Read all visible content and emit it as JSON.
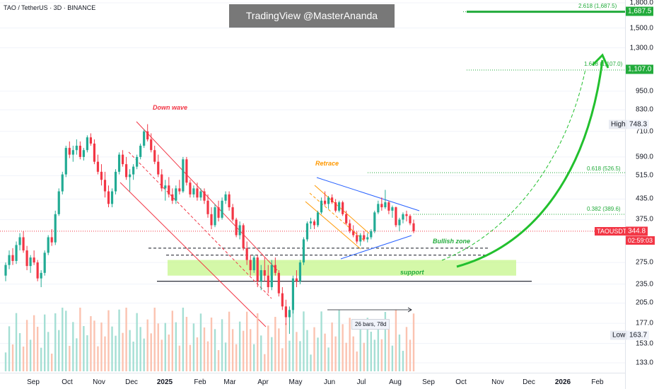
{
  "header": {
    "symbol": "TAO / TetherUS · 3D · BINANCE",
    "watermark": "TradingView @MasterAnanda"
  },
  "price_axis": {
    "ticks": [
      "1,800.0",
      "1,500.0",
      "1,300.0",
      "950.0",
      "830.0",
      "710.0",
      "590.0",
      "515.0",
      "435.0",
      "375.0",
      "275.0",
      "235.0",
      "205.0",
      "177.0",
      "153.0",
      "133.0"
    ],
    "tags": {
      "fib_2618": "1,687.5",
      "fib_1618": "1,107.0",
      "high_label": "High",
      "high_value": "748.3",
      "symbol": "TAOUSDT",
      "last_price": "344.8",
      "countdown": "02:59:03",
      "low_label": "Low",
      "low_value": "163.7"
    }
  },
  "time_axis": {
    "labels": [
      "Sep",
      "Oct",
      "Nov",
      "Dec",
      "2025",
      "Feb",
      "Mar",
      "Apr",
      "May",
      "Jun",
      "Jul",
      "Aug",
      "Sep",
      "Oct",
      "Nov",
      "Dec",
      "2026",
      "Feb"
    ]
  },
  "fib_labels": {
    "f2618": "2.618 (1,687.5)",
    "f1618": "1.618 (1,107.0)",
    "f0618": "0.618 (526.5)",
    "f0382": "0.382 (389.6)"
  },
  "annotations": {
    "down_wave": "Down wave",
    "retrace": "Retrace",
    "bullish_zone": "Bullish zone",
    "support": "support",
    "measure": "26 bars, 78d"
  },
  "colors": {
    "up": "#22ab94",
    "down": "#f23645",
    "fib": "#22ab3b",
    "arrow": "#22c02e",
    "support_zone": "#c6f58b",
    "down_channel": "#f23645",
    "retrace_channel": "#ff9800",
    "triangle": "#2962ff",
    "volume_up": "#a5dfd4",
    "volume_down": "#fbc3b1"
  },
  "chart_data": {
    "type": "candlestick",
    "title": "TAO / TetherUS · 3D · BINANCE",
    "y_scale": "log",
    "ylim": [
      125,
      1800
    ],
    "x_range": [
      "Aug 2024",
      "Mar 2026"
    ],
    "ohlc": [
      {
        "o": 250,
        "h": 275,
        "l": 240,
        "c": 270
      },
      {
        "o": 270,
        "h": 300,
        "l": 262,
        "c": 290
      },
      {
        "o": 290,
        "h": 305,
        "l": 270,
        "c": 278
      },
      {
        "o": 278,
        "h": 320,
        "l": 272,
        "c": 312
      },
      {
        "o": 312,
        "h": 340,
        "l": 300,
        "c": 330
      },
      {
        "o": 330,
        "h": 345,
        "l": 295,
        "c": 300
      },
      {
        "o": 300,
        "h": 310,
        "l": 260,
        "c": 268
      },
      {
        "o": 268,
        "h": 290,
        "l": 255,
        "c": 285
      },
      {
        "o": 285,
        "h": 300,
        "l": 270,
        "c": 275
      },
      {
        "o": 275,
        "h": 280,
        "l": 240,
        "c": 245
      },
      {
        "o": 245,
        "h": 260,
        "l": 230,
        "c": 255
      },
      {
        "o": 255,
        "h": 300,
        "l": 250,
        "c": 295
      },
      {
        "o": 295,
        "h": 335,
        "l": 290,
        "c": 330
      },
      {
        "o": 330,
        "h": 350,
        "l": 310,
        "c": 318
      },
      {
        "o": 318,
        "h": 400,
        "l": 312,
        "c": 390
      },
      {
        "o": 390,
        "h": 470,
        "l": 385,
        "c": 460
      },
      {
        "o": 460,
        "h": 530,
        "l": 450,
        "c": 520
      },
      {
        "o": 520,
        "h": 640,
        "l": 510,
        "c": 630
      },
      {
        "o": 630,
        "h": 660,
        "l": 585,
        "c": 600
      },
      {
        "o": 600,
        "h": 640,
        "l": 570,
        "c": 620
      },
      {
        "o": 620,
        "h": 670,
        "l": 600,
        "c": 640
      },
      {
        "o": 640,
        "h": 660,
        "l": 580,
        "c": 590
      },
      {
        "o": 590,
        "h": 630,
        "l": 575,
        "c": 620
      },
      {
        "o": 620,
        "h": 690,
        "l": 610,
        "c": 680
      },
      {
        "o": 680,
        "h": 700,
        "l": 640,
        "c": 650
      },
      {
        "o": 650,
        "h": 670,
        "l": 560,
        "c": 570
      },
      {
        "o": 570,
        "h": 600,
        "l": 520,
        "c": 530
      },
      {
        "o": 530,
        "h": 560,
        "l": 480,
        "c": 500
      },
      {
        "o": 500,
        "h": 530,
        "l": 440,
        "c": 460
      },
      {
        "o": 460,
        "h": 480,
        "l": 410,
        "c": 420
      },
      {
        "o": 420,
        "h": 470,
        "l": 410,
        "c": 460
      },
      {
        "o": 460,
        "h": 540,
        "l": 450,
        "c": 530
      },
      {
        "o": 530,
        "h": 610,
        "l": 520,
        "c": 600
      },
      {
        "o": 600,
        "h": 620,
        "l": 550,
        "c": 560
      },
      {
        "o": 560,
        "h": 590,
        "l": 500,
        "c": 510
      },
      {
        "o": 510,
        "h": 540,
        "l": 460,
        "c": 520
      },
      {
        "o": 520,
        "h": 560,
        "l": 500,
        "c": 550
      },
      {
        "o": 550,
        "h": 600,
        "l": 540,
        "c": 590
      },
      {
        "o": 590,
        "h": 650,
        "l": 580,
        "c": 640
      },
      {
        "o": 640,
        "h": 720,
        "l": 630,
        "c": 710
      },
      {
        "o": 710,
        "h": 748,
        "l": 660,
        "c": 670
      },
      {
        "o": 670,
        "h": 700,
        "l": 610,
        "c": 620
      },
      {
        "o": 620,
        "h": 640,
        "l": 560,
        "c": 570
      },
      {
        "o": 570,
        "h": 600,
        "l": 510,
        "c": 520
      },
      {
        "o": 520,
        "h": 540,
        "l": 460,
        "c": 470
      },
      {
        "o": 470,
        "h": 500,
        "l": 430,
        "c": 480
      },
      {
        "o": 480,
        "h": 510,
        "l": 440,
        "c": 450
      },
      {
        "o": 450,
        "h": 470,
        "l": 420,
        "c": 430
      },
      {
        "o": 430,
        "h": 480,
        "l": 420,
        "c": 470
      },
      {
        "o": 470,
        "h": 500,
        "l": 450,
        "c": 460
      },
      {
        "o": 460,
        "h": 590,
        "l": 455,
        "c": 580
      },
      {
        "o": 580,
        "h": 590,
        "l": 480,
        "c": 490
      },
      {
        "o": 490,
        "h": 500,
        "l": 440,
        "c": 450
      },
      {
        "o": 450,
        "h": 480,
        "l": 440,
        "c": 470
      },
      {
        "o": 470,
        "h": 490,
        "l": 430,
        "c": 440
      },
      {
        "o": 440,
        "h": 470,
        "l": 430,
        "c": 460
      },
      {
        "o": 460,
        "h": 470,
        "l": 420,
        "c": 430
      },
      {
        "o": 430,
        "h": 450,
        "l": 380,
        "c": 390
      },
      {
        "o": 390,
        "h": 410,
        "l": 350,
        "c": 360
      },
      {
        "o": 360,
        "h": 420,
        "l": 355,
        "c": 410
      },
      {
        "o": 410,
        "h": 430,
        "l": 370,
        "c": 380
      },
      {
        "o": 380,
        "h": 440,
        "l": 375,
        "c": 430
      },
      {
        "o": 430,
        "h": 460,
        "l": 420,
        "c": 450
      },
      {
        "o": 450,
        "h": 460,
        "l": 400,
        "c": 410
      },
      {
        "o": 410,
        "h": 420,
        "l": 370,
        "c": 375
      },
      {
        "o": 375,
        "h": 380,
        "l": 330,
        "c": 335
      },
      {
        "o": 335,
        "h": 370,
        "l": 325,
        "c": 360
      },
      {
        "o": 360,
        "h": 365,
        "l": 300,
        "c": 305
      },
      {
        "o": 305,
        "h": 320,
        "l": 270,
        "c": 280
      },
      {
        "o": 280,
        "h": 290,
        "l": 250,
        "c": 260
      },
      {
        "o": 260,
        "h": 290,
        "l": 255,
        "c": 285
      },
      {
        "o": 285,
        "h": 290,
        "l": 230,
        "c": 240
      },
      {
        "o": 240,
        "h": 270,
        "l": 225,
        "c": 260
      },
      {
        "o": 260,
        "h": 285,
        "l": 240,
        "c": 250
      },
      {
        "o": 250,
        "h": 270,
        "l": 220,
        "c": 230
      },
      {
        "o": 230,
        "h": 280,
        "l": 225,
        "c": 270
      },
      {
        "o": 270,
        "h": 285,
        "l": 250,
        "c": 255
      },
      {
        "o": 255,
        "h": 260,
        "l": 215,
        "c": 220
      },
      {
        "o": 220,
        "h": 230,
        "l": 195,
        "c": 200
      },
      {
        "o": 200,
        "h": 210,
        "l": 175,
        "c": 185
      },
      {
        "o": 185,
        "h": 200,
        "l": 164,
        "c": 195
      },
      {
        "o": 195,
        "h": 250,
        "l": 190,
        "c": 245
      },
      {
        "o": 245,
        "h": 260,
        "l": 230,
        "c": 240
      },
      {
        "o": 240,
        "h": 280,
        "l": 235,
        "c": 275
      },
      {
        "o": 275,
        "h": 330,
        "l": 270,
        "c": 325
      },
      {
        "o": 325,
        "h": 370,
        "l": 320,
        "c": 365
      },
      {
        "o": 365,
        "h": 380,
        "l": 350,
        "c": 370
      },
      {
        "o": 370,
        "h": 375,
        "l": 350,
        "c": 360
      },
      {
        "o": 360,
        "h": 400,
        "l": 355,
        "c": 395
      },
      {
        "o": 395,
        "h": 440,
        "l": 390,
        "c": 430
      },
      {
        "o": 430,
        "h": 460,
        "l": 415,
        "c": 420
      },
      {
        "o": 420,
        "h": 445,
        "l": 405,
        "c": 440
      },
      {
        "o": 440,
        "h": 450,
        "l": 420,
        "c": 425
      },
      {
        "o": 425,
        "h": 435,
        "l": 395,
        "c": 400
      },
      {
        "o": 400,
        "h": 430,
        "l": 395,
        "c": 425
      },
      {
        "o": 425,
        "h": 430,
        "l": 385,
        "c": 390
      },
      {
        "o": 390,
        "h": 400,
        "l": 360,
        "c": 365
      },
      {
        "o": 365,
        "h": 375,
        "l": 340,
        "c": 345
      },
      {
        "o": 345,
        "h": 360,
        "l": 330,
        "c": 335
      },
      {
        "o": 335,
        "h": 345,
        "l": 315,
        "c": 320
      },
      {
        "o": 320,
        "h": 340,
        "l": 310,
        "c": 335
      },
      {
        "o": 335,
        "h": 345,
        "l": 320,
        "c": 325
      },
      {
        "o": 325,
        "h": 340,
        "l": 318,
        "c": 330
      },
      {
        "o": 330,
        "h": 350,
        "l": 325,
        "c": 345
      },
      {
        "o": 345,
        "h": 400,
        "l": 340,
        "c": 395
      },
      {
        "o": 395,
        "h": 430,
        "l": 390,
        "c": 420
      },
      {
        "o": 420,
        "h": 440,
        "l": 400,
        "c": 410
      },
      {
        "o": 410,
        "h": 465,
        "l": 405,
        "c": 425
      },
      {
        "o": 425,
        "h": 430,
        "l": 390,
        "c": 400
      },
      {
        "o": 400,
        "h": 415,
        "l": 380,
        "c": 410
      },
      {
        "o": 410,
        "h": 412,
        "l": 355,
        "c": 360
      },
      {
        "o": 360,
        "h": 380,
        "l": 345,
        "c": 375
      },
      {
        "o": 375,
        "h": 395,
        "l": 365,
        "c": 390
      },
      {
        "o": 390,
        "h": 400,
        "l": 370,
        "c": 385
      },
      {
        "o": 385,
        "h": 390,
        "l": 360,
        "c": 365
      },
      {
        "o": 365,
        "h": 375,
        "l": 340,
        "c": 344.8
      }
    ],
    "volume_note": "volume histogram shown at bottom",
    "fib_levels": [
      {
        "label": "2.618",
        "value": 1687.5
      },
      {
        "label": "1.618",
        "value": 1107.0
      },
      {
        "label": "0.618",
        "value": 526.5
      },
      {
        "label": "0.382",
        "value": 389.6
      }
    ],
    "last_price": 344.8,
    "high": 748.3,
    "low": 163.7,
    "support_zone": [
      250,
      280
    ],
    "support_line": 240,
    "bullish_zone_lines": [
      305,
      290
    ]
  }
}
